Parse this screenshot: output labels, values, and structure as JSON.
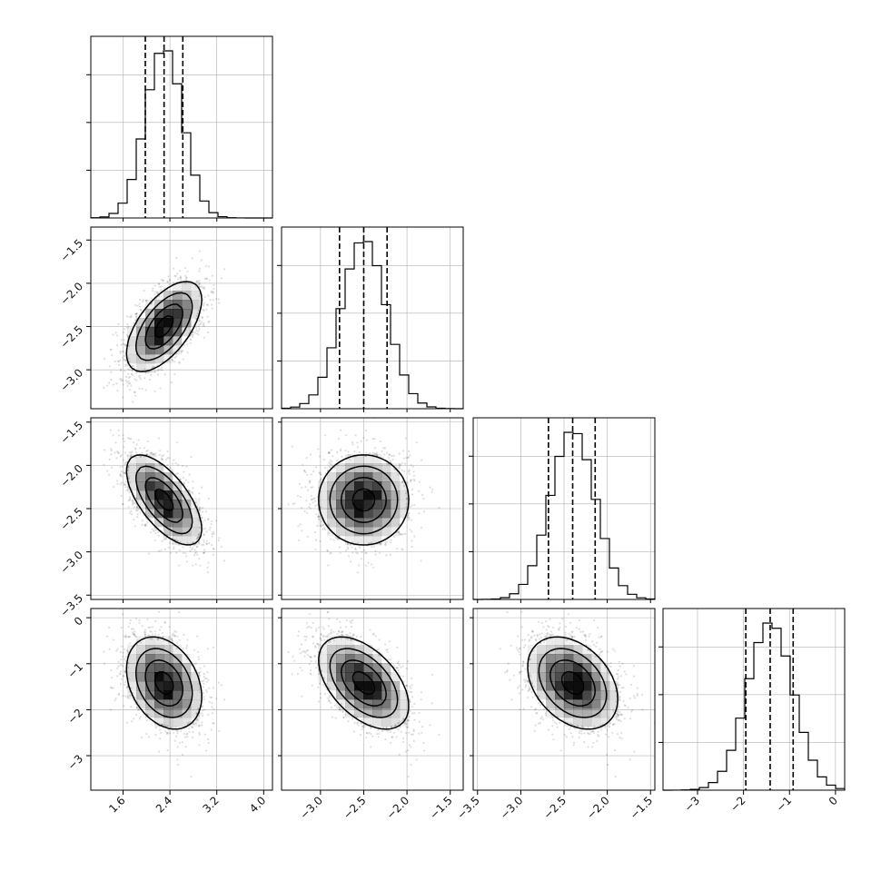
{
  "chart_data": {
    "type": "corner",
    "title": "",
    "parameters": [
      {
        "index": 0,
        "label": "",
        "range": [
          1.05,
          4.15
        ],
        "ticks": [
          1.6,
          2.4,
          3.2,
          4.0
        ],
        "tick_labels": [
          "1.6",
          "2.4",
          "3.2",
          "4.0"
        ],
        "mean": 2.3,
        "sd": 0.32,
        "quantiles": [
          1.98,
          2.3,
          2.62
        ]
      },
      {
        "index": 1,
        "label": "",
        "range": [
          -3.45,
          -1.35
        ],
        "ticks": [
          -3.0,
          -2.5,
          -2.0,
          -1.5
        ],
        "tick_labels": [
          "−3.0",
          "−2.5",
          "−2.0",
          "−1.5"
        ],
        "mean": -2.5,
        "sd": 0.26,
        "quantiles": [
          -2.78,
          -2.5,
          -2.23
        ]
      },
      {
        "index": 2,
        "label": "",
        "range": [
          -3.55,
          -1.45
        ],
        "ticks": [
          -3.5,
          -3.0,
          -2.5,
          -2.0,
          -1.5
        ],
        "tick_labels": [
          "−3.5",
          "−3.0",
          "−2.5",
          "−2.0",
          "−1.5"
        ],
        "mean": -2.4,
        "sd": 0.26,
        "quantiles": [
          -2.68,
          -2.4,
          -2.14
        ]
      },
      {
        "index": 3,
        "label": "",
        "range": [
          -3.75,
          0.2
        ],
        "ticks": [
          -3,
          -2,
          -1,
          0
        ],
        "tick_labels": [
          "−3",
          "−2",
          "−1",
          "0"
        ],
        "mean": -1.42,
        "sd": 0.5,
        "quantiles": [
          -1.95,
          -1.42,
          -0.92
        ]
      }
    ],
    "correlations": [
      {
        "pair": [
          0,
          1
        ],
        "rho": 0.6
      },
      {
        "pair": [
          0,
          2
        ],
        "rho": -0.65
      },
      {
        "pair": [
          1,
          2
        ],
        "rho": 0.0
      },
      {
        "pair": [
          0,
          3
        ],
        "rho": -0.3
      },
      {
        "pair": [
          1,
          3
        ],
        "rho": -0.5
      },
      {
        "pair": [
          2,
          3
        ],
        "rho": -0.35
      }
    ],
    "histogram_bins": 20,
    "contour_levels": [
      "0.5 sigma",
      "1 sigma",
      "1.5 sigma",
      "2 sigma"
    ],
    "grid": true,
    "style": {
      "line_color": "#000000",
      "scatter_color": "#000000",
      "shade_color": "#000000",
      "grid_color": "#b0b0b0"
    }
  }
}
